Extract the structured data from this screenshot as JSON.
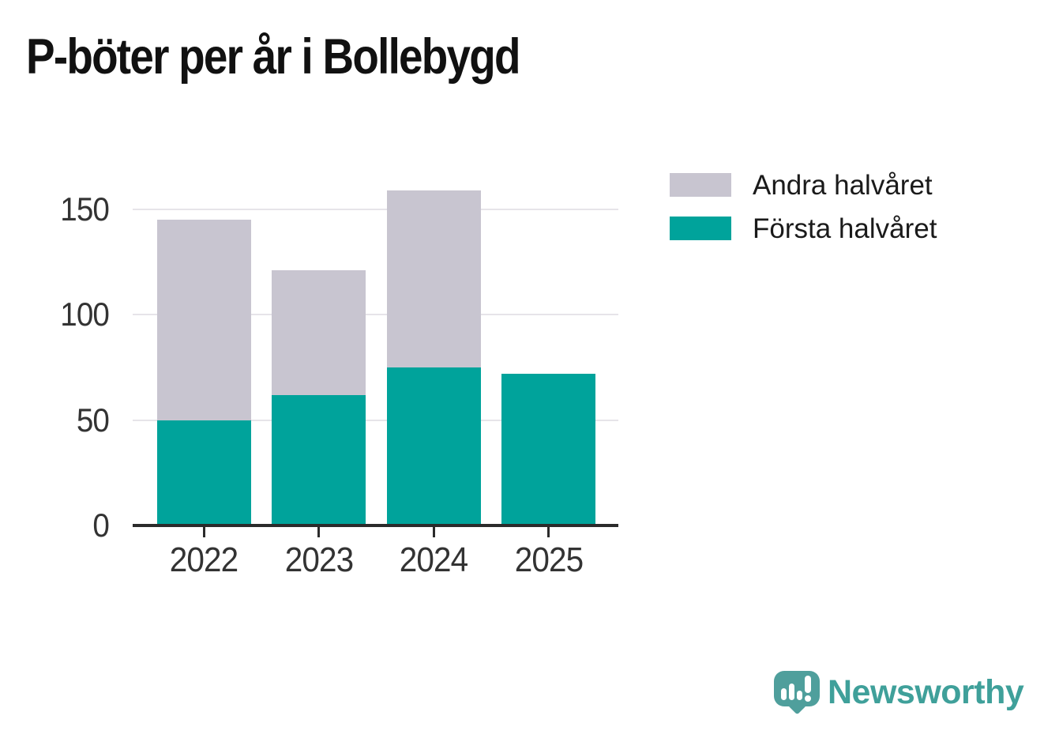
{
  "chart_data": {
    "type": "bar",
    "stacked": true,
    "title": "P-böter per år i Bollebygd",
    "categories": [
      "2022",
      "2023",
      "2024",
      "2025"
    ],
    "series": [
      {
        "name": "Första halvåret",
        "color": "#00a39b",
        "values": [
          50,
          62,
          75,
          72
        ]
      },
      {
        "name": "Andra halvåret",
        "color": "#c8c5d0",
        "values": [
          95,
          59,
          84,
          0
        ]
      }
    ],
    "totals": [
      145,
      121,
      159,
      72
    ],
    "xlabel": "",
    "ylabel": "",
    "yticks": [
      0,
      50,
      100,
      150
    ],
    "ylim": [
      0,
      163
    ],
    "grid": true,
    "legend_position": "right-top"
  },
  "legend": {
    "items": [
      {
        "label": "Andra halvåret",
        "color": "#c8c5d0"
      },
      {
        "label": "Första halvåret",
        "color": "#00a39b"
      }
    ]
  },
  "branding": {
    "wordmark": "Newsworthy",
    "logo_icon": "newsworthy-bubble-chart-icon",
    "accent_color": "#3fa09a"
  }
}
